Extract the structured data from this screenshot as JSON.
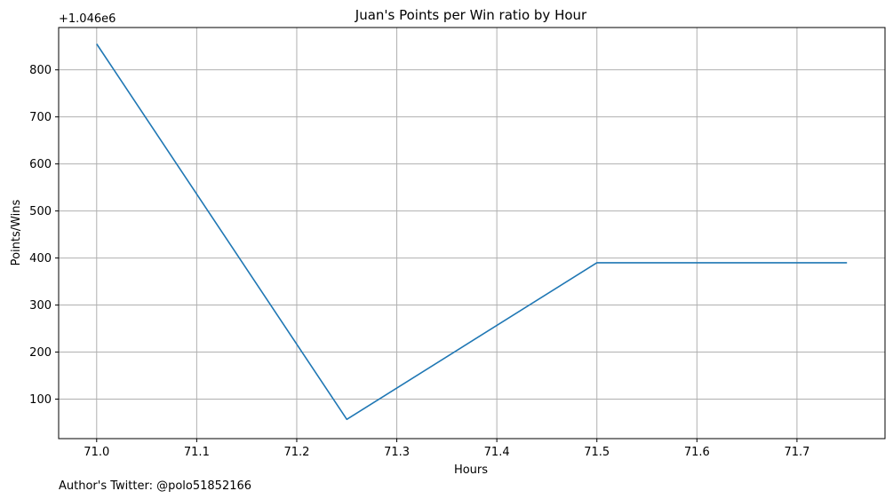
{
  "chart_data": {
    "type": "line",
    "title": "Juan's Points per Win ratio by Hour",
    "xlabel": "Hours",
    "ylabel": "Points/Wins",
    "offset_label": "+1.046e6",
    "footer": "Author's Twitter: @polo51852166",
    "xlim": [
      70.962,
      71.788
    ],
    "ylim": [
      16,
      890
    ],
    "grid": true,
    "x_ticks": [
      71.0,
      71.1,
      71.2,
      71.3,
      71.4,
      71.5,
      71.6,
      71.7
    ],
    "x_tick_labels": [
      "71.0",
      "71.1",
      "71.2",
      "71.3",
      "71.4",
      "71.5",
      "71.6",
      "71.7"
    ],
    "y_ticks": [
      100,
      200,
      300,
      400,
      500,
      600,
      700,
      800
    ],
    "y_tick_labels": [
      "100",
      "200",
      "300",
      "400",
      "500",
      "600",
      "700",
      "800"
    ],
    "series": [
      {
        "color": "#1f77b4",
        "x": [
          71.0,
          71.25,
          71.5,
          71.75
        ],
        "y": [
          855,
          57,
          390,
          390
        ]
      }
    ]
  }
}
